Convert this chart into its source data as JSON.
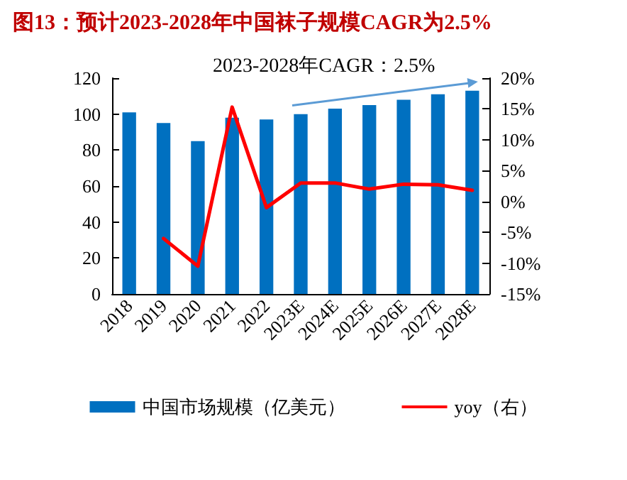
{
  "chart_data": {
    "type": "bar",
    "title": "图13：预计2023-2028年中国袜子规模CAGR为2.5%",
    "categories": [
      "2018",
      "2019",
      "2020",
      "2021",
      "2022",
      "2023E",
      "2024E",
      "2025E",
      "2026E",
      "2027E",
      "2028E"
    ],
    "series": [
      {
        "name": "中国市场规模（亿美元）",
        "color": "#0070c0",
        "values": [
          101,
          95,
          85,
          98,
          97,
          100,
          103,
          105,
          108,
          111,
          113
        ]
      },
      {
        "name": "yoy（右）",
        "type": "line",
        "axis": "y2",
        "color": "#ff0000",
        "values": [
          null,
          -6,
          -10.5,
          15.3,
          -1,
          3,
          3,
          2,
          2.8,
          2.7,
          1.8
        ]
      }
    ],
    "ylim": [
      0,
      120
    ],
    "yticks": [
      0,
      20,
      40,
      60,
      80,
      100,
      120
    ],
    "y2lim": [
      -15,
      20
    ],
    "y2ticks": [
      {
        "value": -15,
        "label": "-15%"
      },
      {
        "value": -10,
        "label": "-10%"
      },
      {
        "value": -5,
        "label": "-5%"
      },
      {
        "value": 0,
        "label": "0%"
      },
      {
        "value": 5,
        "label": "5%"
      },
      {
        "value": 10,
        "label": "10%"
      },
      {
        "value": 15,
        "label": "15%"
      },
      {
        "value": 20,
        "label": "20%"
      }
    ],
    "annotations": [
      "2023-2028年CAGR：2.5%"
    ],
    "grid": false,
    "legend": "bottom",
    "marker": "none",
    "line_style": "solid"
  }
}
